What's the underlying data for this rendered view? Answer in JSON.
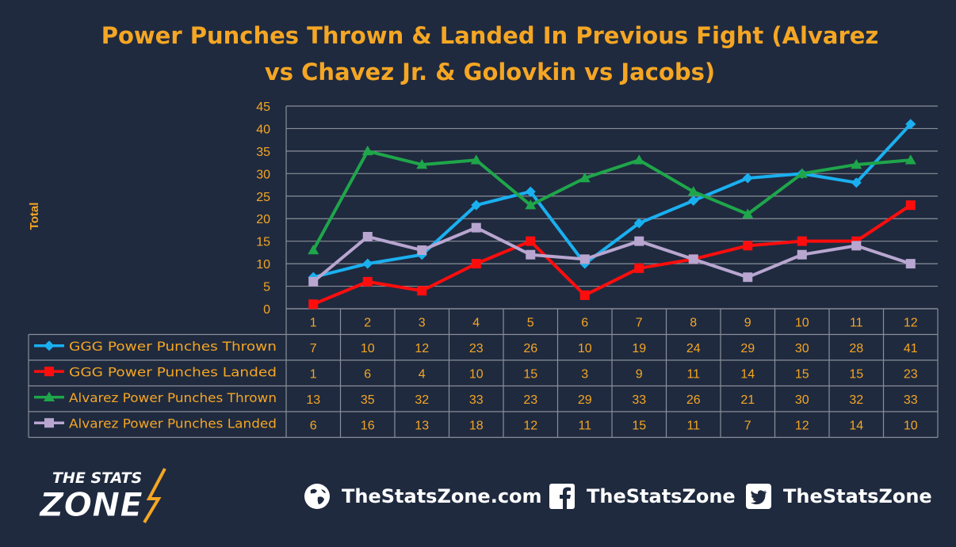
{
  "title_lines": [
    "Power Punches Thrown & Landed In Previous Fight (Alvarez",
    "vs Chavez Jr. & Golovkin vs Jacobs)"
  ],
  "chart_data": {
    "type": "line",
    "title": "Power Punches Thrown & Landed In Previous Fight (Alvarez vs Chavez Jr. & Golovkin vs Jacobs)",
    "ylabel": "Total",
    "ylim": [
      0,
      45
    ],
    "yticks": [
      0,
      5,
      10,
      15,
      20,
      25,
      30,
      35,
      40,
      45
    ],
    "categories": [
      "1",
      "2",
      "3",
      "4",
      "5",
      "6",
      "7",
      "8",
      "9",
      "10",
      "11",
      "12"
    ],
    "grid": true,
    "legend": "data-table",
    "series": [
      {
        "name": "GGG Power Punches Thrown",
        "color": "#1ab0f0",
        "marker": "diamond",
        "values": [
          7,
          10,
          12,
          23,
          26,
          10,
          19,
          24,
          29,
          30,
          28,
          41
        ]
      },
      {
        "name": "GGG Power Punches Landed",
        "color": "#ff0d0d",
        "marker": "square",
        "values": [
          1,
          6,
          4,
          10,
          15,
          3,
          9,
          11,
          14,
          15,
          15,
          23
        ]
      },
      {
        "name": "Alvarez Power Punches Thrown",
        "color": "#1fa64a",
        "marker": "triangle",
        "values": [
          13,
          35,
          32,
          33,
          23,
          29,
          33,
          26,
          21,
          30,
          32,
          33
        ]
      },
      {
        "name": "Alvarez Power Punches Landed",
        "color": "#b8a6d0",
        "marker": "square",
        "values": [
          6,
          16,
          13,
          18,
          12,
          11,
          15,
          11,
          7,
          12,
          14,
          10
        ]
      }
    ]
  },
  "footer": {
    "website": "TheStatsZone.com",
    "facebook": "TheStatsZone",
    "twitter": "TheStatsZone",
    "website_icon": "globe-icon",
    "facebook_icon": "facebook-icon",
    "twitter_icon": "twitter-icon"
  },
  "logo": {
    "line1": "THE STATS",
    "line2": "ZONE"
  }
}
